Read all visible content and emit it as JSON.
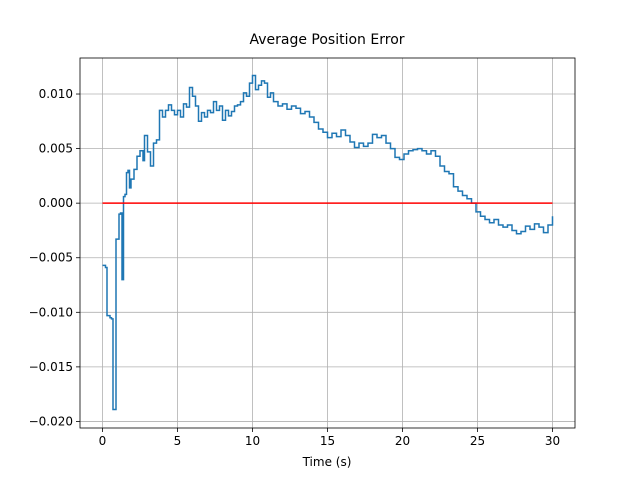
{
  "chart_data": {
    "type": "line",
    "title": "Average Position Error",
    "xlabel": "Time (s)",
    "step": "post",
    "grid": true,
    "xlim": [
      -1.5,
      31.5
    ],
    "xticks": [
      0,
      5,
      10,
      15,
      20,
      25,
      30
    ],
    "ylim": [
      -0.0206,
      0.0133
    ],
    "yticks": [
      {
        "value": -0.02,
        "label": "−0.020"
      },
      {
        "value": -0.015,
        "label": "−0.015"
      },
      {
        "value": -0.01,
        "label": "−0.010"
      },
      {
        "value": -0.005,
        "label": "−0.005"
      },
      {
        "value": 0,
        "label": "0.000"
      },
      {
        "value": 0.005,
        "label": "0.005"
      },
      {
        "value": 0.01,
        "label": "0.010"
      }
    ],
    "series": [
      {
        "color": "#1f77b4",
        "x": [
          0,
          0.2,
          0.3,
          0.5,
          0.6,
          0.7,
          0.8,
          0.9,
          1.0,
          1.1,
          1.2,
          1.3,
          1.4,
          1.5,
          1.6,
          1.7,
          1.8,
          1.9,
          2.1,
          2.3,
          2.5,
          2.7,
          2.8,
          3.0,
          3.2,
          3.4,
          3.6,
          3.8,
          4.0,
          4.2,
          4.4,
          4.6,
          4.8,
          5.0,
          5.2,
          5.4,
          5.6,
          5.8,
          6.0,
          6.2,
          6.4,
          6.6,
          6.8,
          7.0,
          7.2,
          7.4,
          7.6,
          7.8,
          8.0,
          8.2,
          8.4,
          8.6,
          8.8,
          9.0,
          9.2,
          9.4,
          9.6,
          9.8,
          10.0,
          10.2,
          10.4,
          10.6,
          10.8,
          11.0,
          11.2,
          11.4,
          11.7,
          12.0,
          12.3,
          12.6,
          12.9,
          13.2,
          13.5,
          13.8,
          14.1,
          14.4,
          14.7,
          15.0,
          15.3,
          15.6,
          15.9,
          16.2,
          16.5,
          16.8,
          17.1,
          17.4,
          17.7,
          18.0,
          18.3,
          18.6,
          18.9,
          19.2,
          19.5,
          19.8,
          20.1,
          20.4,
          20.7,
          21.0,
          21.3,
          21.6,
          21.9,
          22.2,
          22.5,
          22.8,
          23.1,
          23.4,
          23.7,
          24.0,
          24.3,
          24.6,
          24.9,
          25.2,
          25.5,
          25.8,
          26.1,
          26.4,
          26.7,
          27.0,
          27.3,
          27.6,
          27.9,
          28.2,
          28.5,
          28.8,
          29.1,
          29.4,
          29.7,
          30.0
        ],
        "values": [
          -0.0057,
          -0.0059,
          -0.0103,
          -0.0105,
          -0.0106,
          -0.0189,
          -0.0189,
          -0.0033,
          -0.0033,
          -0.001,
          -0.0009,
          -0.007,
          0.0006,
          0.0008,
          0.0028,
          0.003,
          0.0014,
          0.0022,
          0.0031,
          0.0043,
          0.0048,
          0.0039,
          0.0062,
          0.0047,
          0.0034,
          0.0055,
          0.0058,
          0.0085,
          0.0079,
          0.0085,
          0.009,
          0.0085,
          0.0081,
          0.0085,
          0.0079,
          0.0091,
          0.0088,
          0.0106,
          0.0098,
          0.0089,
          0.0075,
          0.0083,
          0.0079,
          0.0085,
          0.0083,
          0.0093,
          0.0085,
          0.0089,
          0.0076,
          0.0085,
          0.008,
          0.0084,
          0.0089,
          0.009,
          0.0093,
          0.0101,
          0.0098,
          0.011,
          0.0117,
          0.0104,
          0.0108,
          0.0112,
          0.011,
          0.0097,
          0.0101,
          0.0093,
          0.0089,
          0.0091,
          0.0086,
          0.0089,
          0.0087,
          0.0082,
          0.0084,
          0.0079,
          0.0074,
          0.0068,
          0.0065,
          0.006,
          0.0064,
          0.0061,
          0.0067,
          0.0062,
          0.0056,
          0.0051,
          0.0055,
          0.0052,
          0.0055,
          0.0063,
          0.006,
          0.0062,
          0.0055,
          0.005,
          0.0042,
          0.004,
          0.0045,
          0.0048,
          0.0049,
          0.005,
          0.0048,
          0.0045,
          0.0048,
          0.0043,
          0.0034,
          0.0029,
          0.0027,
          0.0015,
          0.0011,
          0.0007,
          0.0004,
          0.0,
          -0.0008,
          -0.0012,
          -0.0015,
          -0.0018,
          -0.0015,
          -0.002,
          -0.0022,
          -0.002,
          -0.0025,
          -0.0028,
          -0.0026,
          -0.0021,
          -0.0024,
          -0.0019,
          -0.0022,
          -0.0027,
          -0.002,
          -0.0012
        ]
      },
      {
        "color": "#ff0000",
        "x": [
          0,
          30
        ],
        "values": [
          0,
          0
        ]
      }
    ]
  }
}
